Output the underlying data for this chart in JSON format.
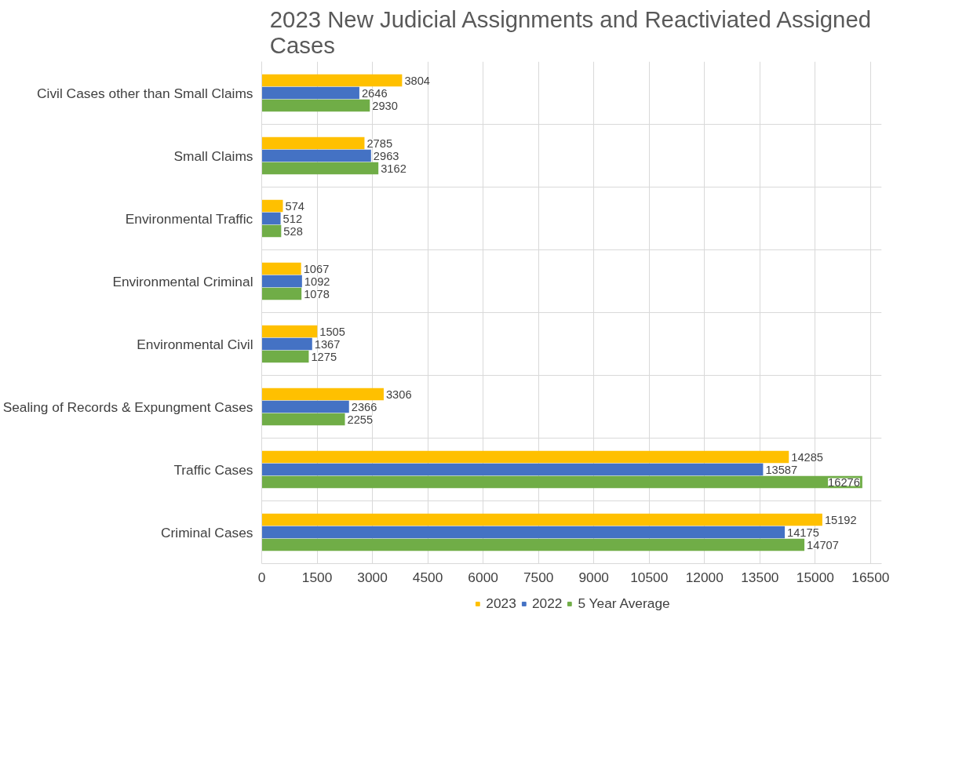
{
  "chart_data": {
    "type": "bar",
    "orientation": "horizontal",
    "title": "2023 New Judicial Assignments and Reactiviated Assigned Cases",
    "categories": [
      "Civil Cases other than Small Claims",
      "Small Claims",
      "Environmental Traffic",
      "Environmental Criminal",
      "Environmental Civil",
      "Sealing of Records & Expungment Cases",
      "Traffic Cases",
      "Criminal Cases"
    ],
    "series": [
      {
        "name": "2023",
        "color": "#ffc000",
        "values": [
          3804,
          2785,
          574,
          1067,
          1505,
          3306,
          14285,
          15192
        ]
      },
      {
        "name": "2022",
        "color": "#4472c4",
        "values": [
          2646,
          2963,
          512,
          1092,
          1367,
          2366,
          13587,
          14175
        ]
      },
      {
        "name": "5 Year Average",
        "color": "#70ad47",
        "values": [
          2930,
          3162,
          528,
          1078,
          1275,
          2255,
          16276,
          14707
        ]
      }
    ],
    "xlim": [
      0,
      16800
    ],
    "xticks": [
      0,
      1500,
      3000,
      4500,
      6000,
      7500,
      9000,
      10500,
      12000,
      13500,
      15000,
      16500
    ],
    "grid": true,
    "legend": "bottom",
    "data_labels": true
  }
}
